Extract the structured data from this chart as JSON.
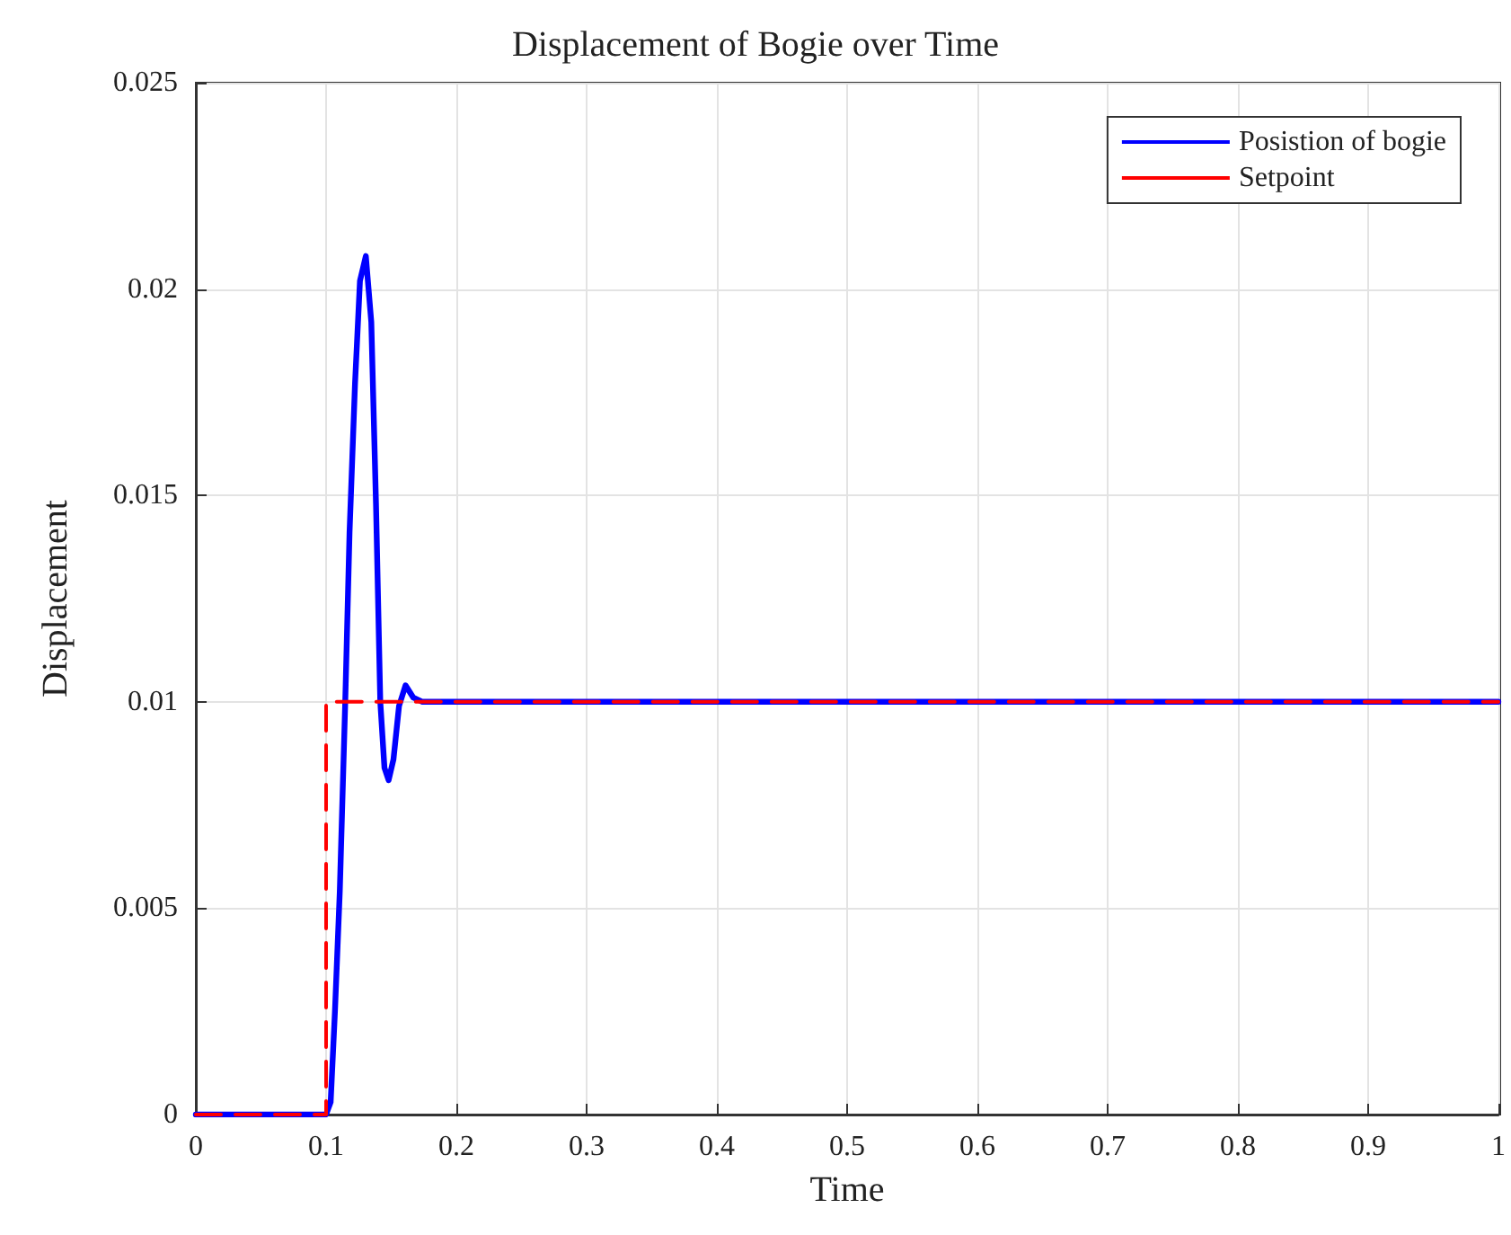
{
  "chart_data": {
    "type": "line",
    "title": "Displacement of Bogie over Time",
    "xlabel": "Time",
    "ylabel": "Displacement",
    "series": [
      {
        "name": "Posistion of bogie",
        "color": "#0000ff",
        "line_style": "solid",
        "x": [
          0,
          0.1,
          0.1035,
          0.1068,
          0.1105,
          0.1147,
          0.118,
          0.1222,
          0.126,
          0.1305,
          0.1347,
          0.1383,
          0.1416,
          0.1448,
          0.148,
          0.1517,
          0.156,
          0.161,
          0.167,
          0.174,
          1
        ],
        "values": [
          0,
          0,
          0.0003,
          0.0025,
          0.0054,
          0.01,
          0.0141,
          0.0177,
          0.0202,
          0.0208,
          0.0192,
          0.0148,
          0.01,
          0.0084,
          0.0081,
          0.0086,
          0.0099,
          0.0104,
          0.0101,
          0.01,
          0.01
        ]
      },
      {
        "name": "Setpoint",
        "color": "#ff0000",
        "line_style": "dashed",
        "x": [
          0,
          0.1,
          0.1,
          1
        ],
        "values": [
          0,
          0,
          0.01,
          0.01
        ]
      }
    ],
    "xlim": [
      0,
      1
    ],
    "xticks": [
      0,
      0.1,
      0.2,
      0.3,
      0.4,
      0.5,
      0.6,
      0.7,
      0.8,
      0.9,
      1
    ],
    "ylim": [
      0,
      0.025
    ],
    "yticks": [
      0,
      0.005,
      0.01,
      0.015,
      0.02,
      0.025
    ],
    "grid": true,
    "legend": "top right",
    "marker": "none"
  }
}
